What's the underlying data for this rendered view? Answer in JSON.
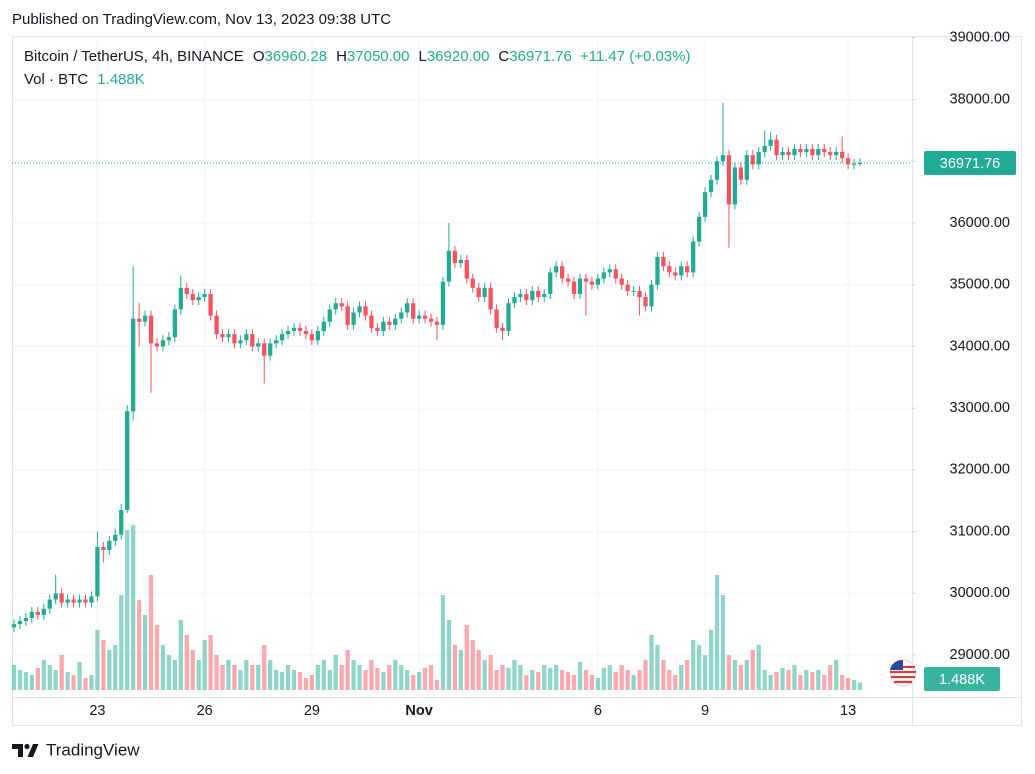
{
  "header": "Published on TradingView.com, Nov 13, 2023 09:38 UTC",
  "footer": "TradingView",
  "chart_data": {
    "type": "candlestick",
    "symbol": "Bitcoin / TetherUS, 4h, BINANCE",
    "legend": [
      {
        "label": "O",
        "value": "36960.28"
      },
      {
        "label": "H",
        "value": "37050.00"
      },
      {
        "label": "L",
        "value": "36920.00"
      },
      {
        "label": "C",
        "value": "36971.76"
      }
    ],
    "change": "+11.47 (+0.03%)",
    "up_color": "#22ab94",
    "down_color": "#f7525f",
    "grid": true,
    "ylim": [
      28320,
      39030
    ],
    "yticks": [
      {
        "value": 29000,
        "label": "29000.00"
      },
      {
        "value": 30000,
        "label": "30000.00"
      },
      {
        "value": 31000,
        "label": "31000.00"
      },
      {
        "value": 32000,
        "label": "32000.00"
      },
      {
        "value": 33000,
        "label": "33000.00"
      },
      {
        "value": 34000,
        "label": "34000.00"
      },
      {
        "value": 35000,
        "label": "35000.00"
      },
      {
        "value": 36000,
        "label": "36000.00"
      },
      {
        "value": 37000,
        "label": "37000.00"
      },
      {
        "value": 38000,
        "label": "38000.00"
      },
      {
        "value": 39000,
        "label": "39000.00"
      }
    ],
    "categories": [
      null,
      null,
      null,
      null,
      null,
      null,
      null,
      null,
      null,
      null,
      null,
      null,
      null,
      null,
      "23",
      null,
      null,
      null,
      null,
      null,
      null,
      null,
      null,
      null,
      null,
      null,
      null,
      null,
      null,
      null,
      null,
      null,
      "26",
      null,
      null,
      null,
      null,
      null,
      null,
      null,
      null,
      null,
      null,
      null,
      null,
      null,
      null,
      null,
      null,
      null,
      "29",
      null,
      null,
      null,
      null,
      null,
      null,
      null,
      null,
      null,
      null,
      null,
      null,
      null,
      null,
      null,
      null,
      null,
      "Nov",
      null,
      null,
      null,
      null,
      null,
      null,
      null,
      null,
      null,
      null,
      null,
      null,
      null,
      null,
      null,
      null,
      null,
      null,
      null,
      null,
      null,
      null,
      null,
      null,
      null,
      null,
      null,
      null,
      null,
      "6",
      null,
      null,
      null,
      null,
      null,
      null,
      null,
      null,
      null,
      null,
      null,
      null,
      null,
      null,
      null,
      null,
      null,
      "9",
      null,
      null,
      null,
      null,
      null,
      null,
      null,
      null,
      null,
      null,
      null,
      null,
      null,
      null,
      null,
      null,
      null,
      null,
      null,
      null,
      null,
      null,
      null,
      "13",
      null,
      null
    ],
    "open": [
      29450,
      29500,
      29550,
      29600,
      29700,
      29650,
      29750,
      29900,
      30000,
      29850,
      29900,
      29850,
      29900,
      29850,
      29950,
      30750,
      30700,
      30850,
      30950,
      31350,
      32950,
      34450,
      34400,
      34500,
      34050,
      34000,
      34100,
      34150,
      34600,
      34950,
      34850,
      34750,
      34800,
      34850,
      34500,
      34200,
      34150,
      34200,
      34050,
      34100,
      34200,
      34000,
      34050,
      33850,
      34050,
      34100,
      34200,
      34250,
      34300,
      34250,
      34200,
      34100,
      34250,
      34400,
      34600,
      34700,
      34650,
      34350,
      34550,
      34650,
      34500,
      34300,
      34250,
      34400,
      34350,
      34450,
      34550,
      34700,
      34450,
      34500,
      34450,
      34400,
      34350,
      35050,
      35550,
      35350,
      35400,
      35100,
      34950,
      34800,
      34950,
      34600,
      34300,
      34250,
      34700,
      34800,
      34850,
      34750,
      34900,
      34800,
      34850,
      35200,
      35300,
      35100,
      35050,
      34850,
      35100,
      35050,
      35000,
      35100,
      35200,
      35250,
      35100,
      35000,
      34900,
      34900,
      34800,
      34650,
      35000,
      35450,
      35300,
      35200,
      35150,
      35300,
      35200,
      35700,
      36100,
      36500,
      36700,
      37000,
      37100,
      36300,
      36900,
      36700,
      37100,
      36950,
      37150,
      37250,
      37350,
      37100,
      37150,
      37100,
      37200,
      37150,
      37200,
      37100,
      37200,
      37150,
      37100,
      37150,
      37050,
      36950,
      36960.28
    ],
    "high": [
      29580,
      29630,
      29680,
      29780,
      29780,
      29830,
      29980,
      30300,
      30080,
      29980,
      29980,
      29980,
      29980,
      30030,
      31000,
      30830,
      30930,
      31050,
      31450,
      33050,
      35300,
      34700,
      34580,
      34580,
      34130,
      34180,
      34230,
      34680,
      35150,
      35030,
      34930,
      34880,
      34930,
      34930,
      34580,
      34280,
      34280,
      34280,
      34180,
      34280,
      34280,
      34130,
      34130,
      34130,
      34180,
      34280,
      34330,
      34380,
      34380,
      34330,
      34280,
      34330,
      34480,
      34680,
      34780,
      34780,
      34730,
      34630,
      34730,
      34730,
      34580,
      34380,
      34480,
      34480,
      34530,
      34630,
      34780,
      34780,
      34580,
      34580,
      34530,
      34480,
      35130,
      36000,
      35630,
      35480,
      35480,
      35180,
      35030,
      35030,
      35030,
      34680,
      34380,
      34780,
      34880,
      34930,
      34930,
      34980,
      34980,
      34930,
      35280,
      35380,
      35380,
      35180,
      35130,
      35180,
      35180,
      35130,
      35180,
      35280,
      35330,
      35330,
      35180,
      35080,
      34980,
      34980,
      34880,
      35080,
      35530,
      35530,
      35380,
      35280,
      35380,
      35380,
      35780,
      36180,
      36580,
      36780,
      37080,
      37950,
      37180,
      36980,
      36980,
      37180,
      37180,
      37230,
      37500,
      37480,
      37430,
      37230,
      37230,
      37280,
      37280,
      37280,
      37280,
      37280,
      37280,
      37230,
      37230,
      37400,
      37130,
      37040,
      37050
    ],
    "low": [
      29370,
      29420,
      29470,
      29520,
      29570,
      29570,
      29670,
      29820,
      29770,
      29770,
      29770,
      29770,
      29770,
      29770,
      29870,
      30500,
      30620,
      30770,
      30870,
      31300,
      32800,
      34000,
      34320,
      33250,
      33920,
      33920,
      34020,
      34070,
      34520,
      34770,
      34670,
      34670,
      34720,
      34420,
      34120,
      34070,
      34070,
      33970,
      33970,
      34020,
      33920,
      33920,
      33400,
      33770,
      33970,
      34020,
      34120,
      34170,
      34170,
      34120,
      34020,
      34020,
      34170,
      34320,
      34520,
      34570,
      34270,
      34270,
      34470,
      34420,
      34220,
      34170,
      34170,
      34270,
      34270,
      34370,
      34470,
      34370,
      34370,
      34370,
      34320,
      34100,
      34270,
      34970,
      35270,
      35270,
      35020,
      34870,
      34720,
      34720,
      34520,
      34220,
      34100,
      34170,
      34620,
      34720,
      34670,
      34670,
      34720,
      34720,
      34770,
      35120,
      35020,
      34970,
      34770,
      34770,
      34500,
      34920,
      34920,
      35020,
      35120,
      35020,
      34920,
      34820,
      34820,
      34500,
      34570,
      34570,
      34920,
      35220,
      35120,
      35070,
      35070,
      35120,
      35120,
      35620,
      36020,
      36420,
      36620,
      36920,
      35600,
      36220,
      36620,
      36620,
      36870,
      36870,
      37070,
      37170,
      37020,
      37020,
      37020,
      37020,
      37070,
      37070,
      37020,
      37020,
      37070,
      37020,
      37020,
      36970,
      36870,
      36870,
      36920
    ],
    "close": [
      29500,
      29550,
      29600,
      29700,
      29650,
      29750,
      29900,
      30000,
      29850,
      29900,
      29850,
      29900,
      29850,
      29950,
      30750,
      30700,
      30850,
      30950,
      31350,
      32950,
      34450,
      34400,
      34500,
      34050,
      34000,
      34100,
      34150,
      34600,
      34950,
      34850,
      34750,
      34800,
      34850,
      34500,
      34200,
      34150,
      34200,
      34050,
      34100,
      34200,
      34000,
      34050,
      33850,
      34050,
      34100,
      34200,
      34250,
      34300,
      34250,
      34200,
      34100,
      34250,
      34400,
      34600,
      34700,
      34650,
      34350,
      34550,
      34650,
      34500,
      34300,
      34250,
      34400,
      34350,
      34450,
      34550,
      34700,
      34450,
      34500,
      34450,
      34400,
      34350,
      35050,
      35550,
      35350,
      35400,
      35100,
      34950,
      34800,
      34950,
      34600,
      34300,
      34250,
      34700,
      34800,
      34850,
      34750,
      34900,
      34800,
      34850,
      35200,
      35300,
      35100,
      35050,
      34850,
      35100,
      35050,
      35000,
      35100,
      35200,
      35250,
      35100,
      35000,
      34900,
      34900,
      34800,
      34650,
      35000,
      35450,
      35300,
      35200,
      35150,
      35300,
      35200,
      35700,
      36100,
      36500,
      36700,
      37000,
      37100,
      36300,
      36900,
      36700,
      37100,
      36950,
      37150,
      37250,
      37350,
      37100,
      37150,
      37100,
      37200,
      37150,
      37200,
      37100,
      37200,
      37150,
      37100,
      37150,
      37050,
      36950,
      36960.28,
      36971.76
    ],
    "volume": {
      "name": "Vol · BTC",
      "last_value_label": "1.488K",
      "values": [
        5000,
        4000,
        3600,
        3000,
        4400,
        6000,
        5000,
        4000,
        7000,
        3600,
        3000,
        5600,
        2400,
        3000,
        12000,
        10000,
        8000,
        9000,
        19000,
        32000,
        33000,
        18000,
        15000,
        23000,
        13000,
        9000,
        7000,
        6000,
        14000,
        11000,
        8000,
        6000,
        10000,
        11000,
        7000,
        5000,
        6000,
        5000,
        4000,
        6000,
        5000,
        5000,
        9000,
        6000,
        4000,
        3600,
        5000,
        4000,
        3600,
        2400,
        3000,
        5000,
        6000,
        4000,
        7000,
        5000,
        8000,
        6000,
        5000,
        4000,
        6000,
        4400,
        3600,
        5000,
        6000,
        5000,
        4000,
        3000,
        3600,
        4400,
        5000,
        2000,
        19000,
        14000,
        9000,
        8000,
        13000,
        10000,
        8000,
        6000,
        7000,
        4000,
        5000,
        4400,
        6000,
        5000,
        3000,
        4000,
        3600,
        5000,
        4400,
        5000,
        4000,
        3600,
        3000,
        5600,
        4000,
        3000,
        2400,
        4400,
        5000,
        3600,
        5000,
        4000,
        3000,
        4000,
        6000,
        11000,
        9000,
        6000,
        4000,
        3000,
        5000,
        6000,
        10000,
        9000,
        7000,
        12000,
        23000,
        19000,
        7000,
        6000,
        5000,
        6000,
        8000,
        9000,
        4000,
        3000,
        3600,
        4400,
        4000,
        5000,
        3000,
        4000,
        3600,
        4000,
        3000,
        5000,
        6000,
        3000,
        2400,
        2000,
        1488
      ]
    }
  }
}
